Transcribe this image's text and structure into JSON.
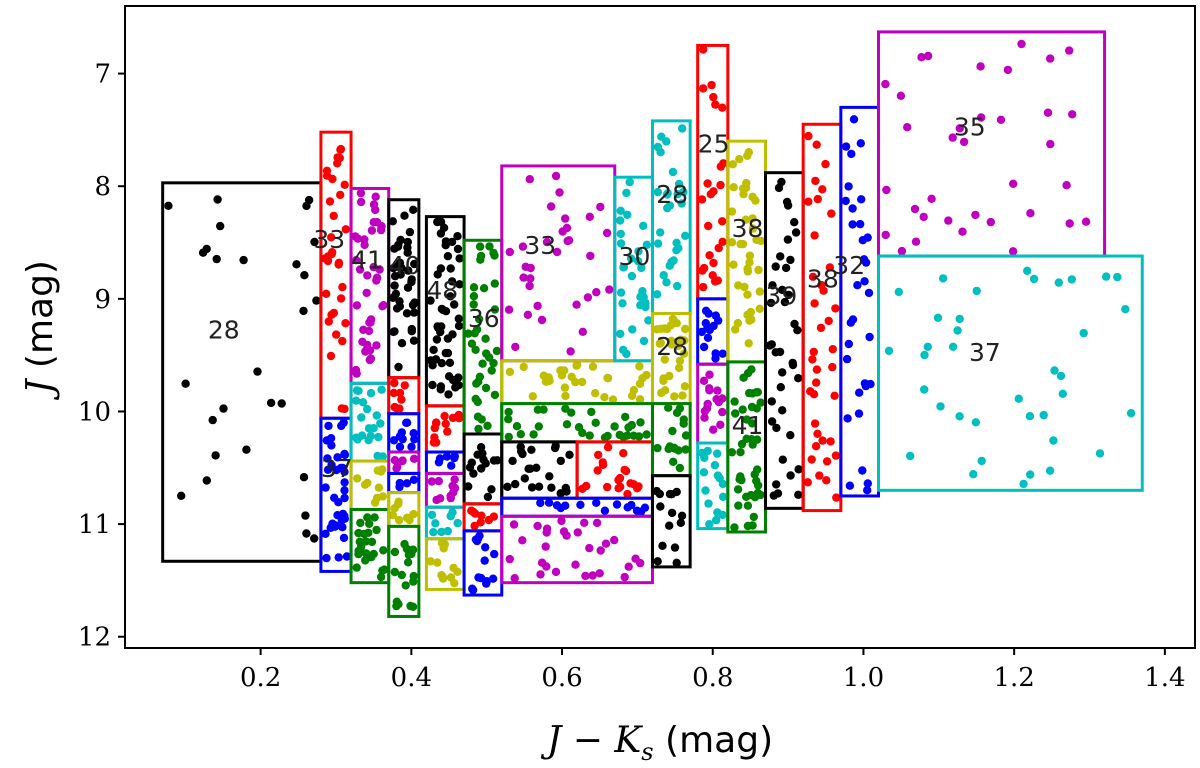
{
  "chart_data": {
    "type": "scatter",
    "title": "",
    "xlabel": "J − Ks (mag)",
    "ylabel": "J (mag)",
    "xlabel_parts": {
      "main": "J − K",
      "sub": "s",
      "unit": " (mag)"
    },
    "ylabel_parts": {
      "main": "J",
      "unit": " (mag)"
    },
    "xlim": [
      0.02,
      1.44
    ],
    "ylim": [
      12.1,
      6.4
    ],
    "y_inverted": true,
    "xticks": [
      0.2,
      0.4,
      0.6,
      0.8,
      1.0,
      1.2,
      1.4
    ],
    "xtick_labels": [
      "0.2",
      "0.4",
      "0.6",
      "0.8",
      "1.0",
      "1.2",
      "1.4"
    ],
    "yticks": [
      7,
      8,
      9,
      10,
      11,
      12
    ],
    "ytick_labels": [
      "7",
      "8",
      "9",
      "10",
      "11",
      "12"
    ],
    "grid": false,
    "colors": {
      "black": "#000000",
      "red": "#ff0000",
      "blue": "#0000ff",
      "green": "#008000",
      "magenta": "#bf00bf",
      "cyan": "#00bfbf",
      "yellow": "#bfbf00"
    },
    "boxes": [
      {
        "x0": 0.07,
        "x1": 0.28,
        "y0": 7.97,
        "y1": 11.33,
        "color": "black",
        "label": "28",
        "lx": 0.13,
        "ly": 9.35,
        "n": 28
      },
      {
        "x0": 0.28,
        "x1": 0.32,
        "y0": 7.52,
        "y1": 10.06,
        "color": "red",
        "label": "33",
        "lx": 0.27,
        "ly": 8.55,
        "n": 33
      },
      {
        "x0": 0.28,
        "x1": 0.32,
        "y0": 10.06,
        "y1": 11.42,
        "color": "blue",
        "label": "37",
        "lx": 0.28,
        "ly": 10.58,
        "n": 37
      },
      {
        "x0": 0.32,
        "x1": 0.37,
        "y0": 8.02,
        "y1": 9.75,
        "color": "magenta",
        "label": "41",
        "lx": 0.32,
        "ly": 8.73,
        "n": 41
      },
      {
        "x0": 0.32,
        "x1": 0.37,
        "y0": 9.75,
        "y1": 10.44,
        "color": "cyan",
        "label": "",
        "n": 20
      },
      {
        "x0": 0.32,
        "x1": 0.37,
        "y0": 10.44,
        "y1": 10.87,
        "color": "yellow",
        "label": "",
        "n": 10
      },
      {
        "x0": 0.32,
        "x1": 0.37,
        "y0": 10.87,
        "y1": 11.52,
        "color": "green",
        "label": "",
        "n": 24
      },
      {
        "x0": 0.37,
        "x1": 0.41,
        "y0": 8.12,
        "y1": 9.7,
        "color": "black",
        "label": "40",
        "lx": 0.37,
        "ly": 8.78,
        "n": 40
      },
      {
        "x0": 0.37,
        "x1": 0.41,
        "y0": 9.7,
        "y1": 10.02,
        "color": "red",
        "label": "",
        "n": 8
      },
      {
        "x0": 0.37,
        "x1": 0.41,
        "y0": 10.02,
        "y1": 10.36,
        "color": "blue",
        "label": "",
        "n": 10
      },
      {
        "x0": 0.37,
        "x1": 0.41,
        "y0": 10.36,
        "y1": 10.55,
        "color": "magenta",
        "label": "",
        "n": 6
      },
      {
        "x0": 0.37,
        "x1": 0.41,
        "y0": 10.55,
        "y1": 10.72,
        "color": "blue",
        "label": "",
        "n": 4
      },
      {
        "x0": 0.37,
        "x1": 0.41,
        "y0": 10.72,
        "y1": 11.02,
        "color": "yellow",
        "label": "",
        "n": 8
      },
      {
        "x0": 0.37,
        "x1": 0.41,
        "y0": 11.02,
        "y1": 11.82,
        "color": "green",
        "label": "",
        "n": 18
      },
      {
        "x0": 0.42,
        "x1": 0.47,
        "y0": 8.27,
        "y1": 9.95,
        "color": "black",
        "label": "48",
        "lx": 0.42,
        "ly": 9.0,
        "n": 48
      },
      {
        "x0": 0.42,
        "x1": 0.47,
        "y0": 9.95,
        "y1": 10.36,
        "color": "red",
        "label": "",
        "n": 12
      },
      {
        "x0": 0.42,
        "x1": 0.47,
        "y0": 10.36,
        "y1": 10.55,
        "color": "blue",
        "label": "",
        "n": 6
      },
      {
        "x0": 0.42,
        "x1": 0.47,
        "y0": 10.55,
        "y1": 10.85,
        "color": "magenta",
        "label": "",
        "n": 10
      },
      {
        "x0": 0.42,
        "x1": 0.47,
        "y0": 10.85,
        "y1": 11.13,
        "color": "cyan",
        "label": "",
        "n": 8
      },
      {
        "x0": 0.42,
        "x1": 0.47,
        "y0": 11.13,
        "y1": 11.58,
        "color": "yellow",
        "label": "",
        "n": 12
      },
      {
        "x0": 0.47,
        "x1": 0.52,
        "y0": 8.48,
        "y1": 10.2,
        "color": "green",
        "label": "36",
        "lx": 0.475,
        "ly": 9.25,
        "n": 36
      },
      {
        "x0": 0.47,
        "x1": 0.52,
        "y0": 10.2,
        "y1": 10.82,
        "color": "black",
        "label": "",
        "n": 14
      },
      {
        "x0": 0.47,
        "x1": 0.52,
        "y0": 10.82,
        "y1": 11.06,
        "color": "red",
        "label": "",
        "n": 8
      },
      {
        "x0": 0.47,
        "x1": 0.52,
        "y0": 11.06,
        "y1": 11.63,
        "color": "blue",
        "label": "",
        "n": 14
      },
      {
        "x0": 0.52,
        "x1": 0.67,
        "y0": 7.82,
        "y1": 9.55,
        "color": "magenta",
        "label": "33",
        "lx": 0.55,
        "ly": 8.6,
        "n": 33
      },
      {
        "x0": 0.52,
        "x1": 0.72,
        "y0": 9.55,
        "y1": 9.93,
        "color": "yellow",
        "label": "",
        "n": 30
      },
      {
        "x0": 0.52,
        "x1": 0.72,
        "y0": 9.93,
        "y1": 10.27,
        "color": "green",
        "label": "",
        "n": 30
      },
      {
        "x0": 0.52,
        "x1": 0.62,
        "y0": 10.27,
        "y1": 10.77,
        "color": "black",
        "label": "",
        "n": 22
      },
      {
        "x0": 0.62,
        "x1": 0.72,
        "y0": 10.27,
        "y1": 10.77,
        "color": "red",
        "label": "",
        "n": 20
      },
      {
        "x0": 0.52,
        "x1": 0.72,
        "y0": 10.77,
        "y1": 10.93,
        "color": "blue",
        "label": "",
        "n": 14
      },
      {
        "x0": 0.52,
        "x1": 0.72,
        "y0": 10.93,
        "y1": 11.52,
        "color": "magenta",
        "label": "",
        "n": 30
      },
      {
        "x0": 0.67,
        "x1": 0.72,
        "y0": 7.92,
        "y1": 9.55,
        "color": "cyan",
        "label": "30",
        "lx": 0.675,
        "ly": 8.7,
        "n": 30
      },
      {
        "x0": 0.72,
        "x1": 0.77,
        "y0": 7.42,
        "y1": 9.13,
        "color": "cyan",
        "label": "28",
        "lx": 0.725,
        "ly": 8.15,
        "n": 28
      },
      {
        "x0": 0.72,
        "x1": 0.77,
        "y0": 9.13,
        "y1": 9.93,
        "color": "yellow",
        "label": "28",
        "lx": 0.725,
        "ly": 9.5,
        "n": 28
      },
      {
        "x0": 0.72,
        "x1": 0.77,
        "y0": 9.93,
        "y1": 10.57,
        "color": "green",
        "label": "",
        "n": 16
      },
      {
        "x0": 0.72,
        "x1": 0.77,
        "y0": 10.57,
        "y1": 11.38,
        "color": "black",
        "label": "",
        "n": 14
      },
      {
        "x0": 0.78,
        "x1": 0.82,
        "y0": 6.75,
        "y1": 9.0,
        "color": "red",
        "label": "25",
        "lx": 0.78,
        "ly": 7.7,
        "n": 25
      },
      {
        "x0": 0.78,
        "x1": 0.82,
        "y0": 9.0,
        "y1": 9.58,
        "color": "blue",
        "label": "",
        "n": 14
      },
      {
        "x0": 0.78,
        "x1": 0.82,
        "y0": 9.58,
        "y1": 10.28,
        "color": "magenta",
        "label": "",
        "n": 16
      },
      {
        "x0": 0.78,
        "x1": 0.82,
        "y0": 10.28,
        "y1": 11.04,
        "color": "cyan",
        "label": "",
        "n": 16
      },
      {
        "x0": 0.82,
        "x1": 0.87,
        "y0": 7.6,
        "y1": 9.56,
        "color": "yellow",
        "label": "38",
        "lx": 0.825,
        "ly": 8.45,
        "n": 38
      },
      {
        "x0": 0.82,
        "x1": 0.87,
        "y0": 9.56,
        "y1": 11.07,
        "color": "green",
        "label": "41",
        "lx": 0.825,
        "ly": 10.2,
        "n": 41
      },
      {
        "x0": 0.87,
        "x1": 0.92,
        "y0": 7.88,
        "y1": 10.86,
        "color": "black",
        "label": "39",
        "lx": 0.87,
        "ly": 9.05,
        "n": 39
      },
      {
        "x0": 0.92,
        "x1": 0.97,
        "y0": 7.45,
        "y1": 10.88,
        "color": "red",
        "label": "38",
        "lx": 0.925,
        "ly": 8.9,
        "n": 38
      },
      {
        "x0": 0.97,
        "x1": 1.02,
        "y0": 7.3,
        "y1": 10.75,
        "color": "blue",
        "label": "32",
        "lx": 0.96,
        "ly": 8.78,
        "n": 32
      },
      {
        "x0": 1.02,
        "x1": 1.32,
        "y0": 6.63,
        "y1": 8.62,
        "color": "magenta",
        "label": "35",
        "lx": 1.12,
        "ly": 7.55,
        "n": 35
      },
      {
        "x0": 1.02,
        "x1": 1.37,
        "y0": 8.62,
        "y1": 10.7,
        "color": "cyan",
        "label": "37",
        "lx": 1.14,
        "ly": 9.55,
        "n": 37
      }
    ]
  }
}
